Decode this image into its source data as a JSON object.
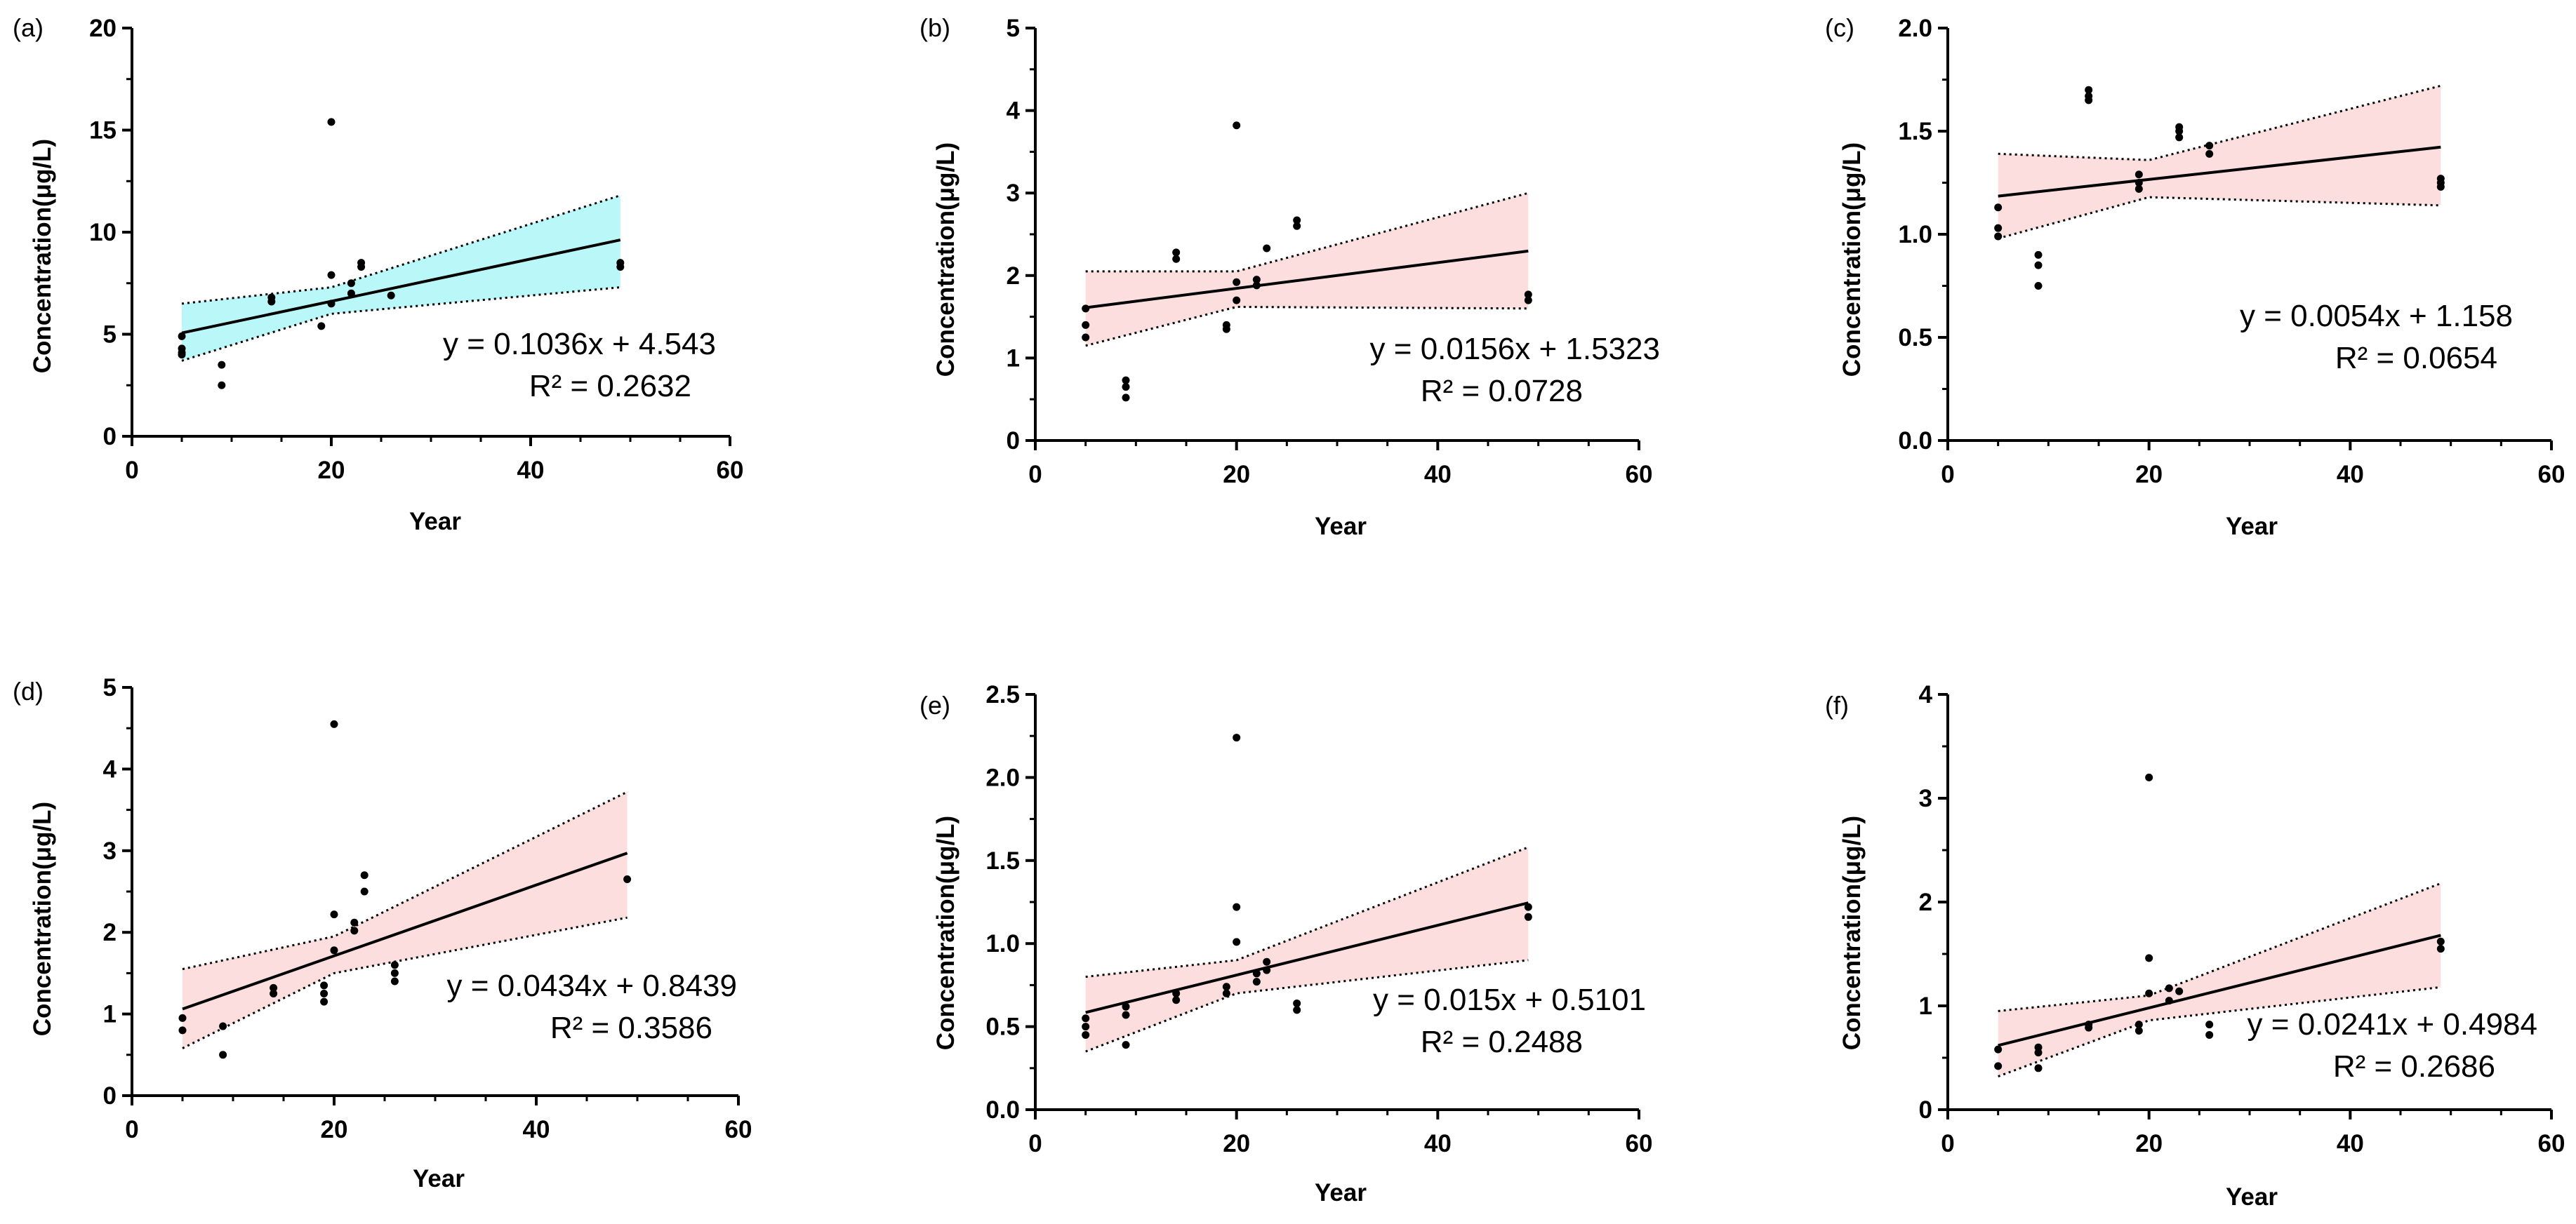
{
  "figure": {
    "colors": {
      "band_cyan": "#b9f7f9",
      "band_pink": "#fcdede",
      "ink": "#000000"
    }
  },
  "chart_data": [
    {
      "label": "(a)",
      "type": "scatter",
      "xlabel": "Year",
      "ylabel": "Concentration(μg/L)",
      "xlim": [
        0,
        60
      ],
      "ylim": [
        0,
        20
      ],
      "xticks": [
        "0",
        "20",
        "40",
        "60"
      ],
      "yticks": [
        "0",
        "5",
        "10",
        "15",
        "20"
      ],
      "equation": "y = 0.1036x + 4.543",
      "r2": "R² = 0.2632",
      "fit": {
        "slope": 0.1036,
        "intercept": 4.543,
        "x_range": [
          5,
          49
        ]
      },
      "band": {
        "color": "band_cyan",
        "x": [
          5,
          20,
          49
        ],
        "upper": [
          6.5,
          7.3,
          11.8
        ],
        "lower": [
          3.7,
          6.0,
          7.3
        ]
      },
      "points": [
        [
          5,
          4.9
        ],
        [
          5,
          4.3
        ],
        [
          5,
          4.1
        ],
        [
          5,
          4.0
        ],
        [
          9,
          3.5
        ],
        [
          9,
          2.5
        ],
        [
          14,
          6.8
        ],
        [
          14,
          6.6
        ],
        [
          19,
          5.4
        ],
        [
          20,
          15.4
        ],
        [
          20,
          7.9
        ],
        [
          20,
          6.5
        ],
        [
          22,
          7.5
        ],
        [
          22,
          7.0
        ],
        [
          23,
          8.5
        ],
        [
          23,
          8.3
        ],
        [
          26,
          6.9
        ],
        [
          49,
          8.5
        ],
        [
          49,
          8.3
        ]
      ]
    },
    {
      "label": "(b)",
      "type": "scatter",
      "xlabel": "Year",
      "ylabel": "Concentration(μg/L)",
      "xlim": [
        0,
        60
      ],
      "ylim": [
        0,
        5
      ],
      "xticks": [
        "0",
        "20",
        "40",
        "60"
      ],
      "yticks": [
        "0",
        "1",
        "2",
        "3",
        "4",
        "5"
      ],
      "equation": "y = 0.0156x + 1.5323",
      "r2": "R² = 0.0728",
      "fit": {
        "slope": 0.0156,
        "intercept": 1.5323,
        "x_range": [
          5,
          49
        ]
      },
      "band": {
        "color": "band_pink",
        "x": [
          5,
          20,
          49
        ],
        "upper": [
          2.05,
          2.05,
          3.0
        ],
        "lower": [
          1.15,
          1.62,
          1.6
        ]
      },
      "points": [
        [
          5,
          1.6
        ],
        [
          5,
          1.4
        ],
        [
          5,
          1.25
        ],
        [
          9,
          0.73
        ],
        [
          9,
          0.65
        ],
        [
          9,
          0.52
        ],
        [
          14,
          2.28
        ],
        [
          14,
          2.2
        ],
        [
          19,
          1.4
        ],
        [
          19,
          1.35
        ],
        [
          20,
          3.82
        ],
        [
          20,
          1.92
        ],
        [
          20,
          1.7
        ],
        [
          22,
          1.95
        ],
        [
          22,
          1.88
        ],
        [
          23,
          2.33
        ],
        [
          26,
          2.67
        ],
        [
          26,
          2.6
        ],
        [
          49,
          1.77
        ],
        [
          49,
          1.7
        ]
      ]
    },
    {
      "label": "(c)",
      "type": "scatter",
      "xlabel": "Year",
      "ylabel": "Concentration(μg/L)",
      "xlim": [
        0,
        60
      ],
      "ylim": [
        0,
        2.0
      ],
      "xticks": [
        "0",
        "20",
        "40",
        "60"
      ],
      "yticks": [
        "0.0",
        "0.5",
        "1.0",
        "1.5",
        "2.0"
      ],
      "equation": "y = 0.0054x + 1.158",
      "r2": "R² = 0.0654",
      "fit": {
        "slope": 0.0054,
        "intercept": 1.158,
        "x_range": [
          5,
          49
        ]
      },
      "band": {
        "color": "band_pink",
        "x": [
          5,
          20,
          49
        ],
        "upper": [
          1.39,
          1.36,
          1.72
        ],
        "lower": [
          0.98,
          1.18,
          1.14
        ]
      },
      "points": [
        [
          5,
          1.13
        ],
        [
          5,
          1.03
        ],
        [
          5,
          0.99
        ],
        [
          9,
          0.9
        ],
        [
          9,
          0.85
        ],
        [
          9,
          0.75
        ],
        [
          14,
          1.7
        ],
        [
          14,
          1.67
        ],
        [
          14,
          1.65
        ],
        [
          19,
          1.29
        ],
        [
          19,
          1.25
        ],
        [
          19,
          1.22
        ],
        [
          23,
          1.52
        ],
        [
          23,
          1.5
        ],
        [
          23,
          1.47
        ],
        [
          26,
          1.43
        ],
        [
          26,
          1.39
        ],
        [
          49,
          1.27
        ],
        [
          49,
          1.25
        ],
        [
          49,
          1.23
        ]
      ]
    },
    {
      "label": "(d)",
      "type": "scatter",
      "xlabel": "Year",
      "ylabel": "Concentration(μg/L)",
      "xlim": [
        0,
        60
      ],
      "ylim": [
        0,
        5
      ],
      "xticks": [
        "0",
        "20",
        "40",
        "60"
      ],
      "yticks": [
        "0",
        "1",
        "2",
        "3",
        "4",
        "5"
      ],
      "equation": "y = 0.0434x + 0.8439",
      "r2": "R² = 0.3586",
      "fit": {
        "slope": 0.0434,
        "intercept": 0.8439,
        "x_range": [
          5,
          49
        ]
      },
      "band": {
        "color": "band_pink",
        "x": [
          5,
          20,
          49
        ],
        "upper": [
          1.55,
          1.95,
          3.72
        ],
        "lower": [
          0.58,
          1.5,
          2.18
        ]
      },
      "points": [
        [
          5,
          0.95
        ],
        [
          5,
          0.8
        ],
        [
          9,
          0.85
        ],
        [
          9,
          0.5
        ],
        [
          14,
          1.32
        ],
        [
          14,
          1.25
        ],
        [
          19,
          1.35
        ],
        [
          19,
          1.25
        ],
        [
          19,
          1.15
        ],
        [
          20,
          4.55
        ],
        [
          20,
          2.22
        ],
        [
          20,
          1.78
        ],
        [
          22,
          2.12
        ],
        [
          22,
          2.02
        ],
        [
          23,
          2.7
        ],
        [
          23,
          2.5
        ],
        [
          26,
          1.6
        ],
        [
          26,
          1.5
        ],
        [
          26,
          1.4
        ],
        [
          49,
          2.65
        ]
      ]
    },
    {
      "label": "(e)",
      "type": "scatter",
      "xlabel": "Year",
      "ylabel": "Concentration(μg/L)",
      "xlim": [
        0,
        60
      ],
      "ylim": [
        0,
        2.5
      ],
      "xticks": [
        "0",
        "20",
        "40",
        "60"
      ],
      "yticks": [
        "0.0",
        "0.5",
        "1.0",
        "1.5",
        "2.0",
        "2.5"
      ],
      "equation": "y = 0.015x + 0.5101",
      "r2": "R² = 0.2488",
      "fit": {
        "slope": 0.015,
        "intercept": 0.5101,
        "x_range": [
          5,
          49
        ]
      },
      "band": {
        "color": "band_pink",
        "x": [
          5,
          20,
          49
        ],
        "upper": [
          0.8,
          0.9,
          1.58
        ],
        "lower": [
          0.35,
          0.7,
          0.9
        ]
      },
      "points": [
        [
          5,
          0.55
        ],
        [
          5,
          0.5
        ],
        [
          5,
          0.45
        ],
        [
          9,
          0.62
        ],
        [
          9,
          0.57
        ],
        [
          9,
          0.39
        ],
        [
          14,
          0.7
        ],
        [
          14,
          0.66
        ],
        [
          19,
          0.74
        ],
        [
          19,
          0.7
        ],
        [
          20,
          2.24
        ],
        [
          20,
          1.22
        ],
        [
          20,
          1.01
        ],
        [
          22,
          0.82
        ],
        [
          22,
          0.77
        ],
        [
          23,
          0.89
        ],
        [
          23,
          0.84
        ],
        [
          26,
          0.64
        ],
        [
          26,
          0.6
        ],
        [
          49,
          1.22
        ],
        [
          49,
          1.16
        ]
      ]
    },
    {
      "label": "(f)",
      "type": "scatter",
      "xlabel": "Year",
      "ylabel": "Concentration(μg/L)",
      "xlim": [
        0,
        60
      ],
      "ylim": [
        0,
        4
      ],
      "xticks": [
        "0",
        "20",
        "40",
        "60"
      ],
      "yticks": [
        "0",
        "1",
        "2",
        "3",
        "4"
      ],
      "equation": "y = 0.0241x + 0.4984",
      "r2": "R² = 0.2686",
      "fit": {
        "slope": 0.0241,
        "intercept": 0.4984,
        "x_range": [
          5,
          49
        ]
      },
      "band": {
        "color": "band_pink",
        "x": [
          5,
          20,
          49
        ],
        "upper": [
          0.95,
          1.1,
          2.18
        ],
        "lower": [
          0.32,
          0.86,
          1.18
        ]
      },
      "points": [
        [
          5,
          0.58
        ],
        [
          5,
          0.42
        ],
        [
          9,
          0.6
        ],
        [
          9,
          0.55
        ],
        [
          9,
          0.4
        ],
        [
          14,
          0.82
        ],
        [
          14,
          0.79
        ],
        [
          19,
          0.82
        ],
        [
          19,
          0.76
        ],
        [
          20,
          3.2
        ],
        [
          20,
          1.46
        ],
        [
          20,
          1.12
        ],
        [
          22,
          1.17
        ],
        [
          22,
          1.05
        ],
        [
          23,
          1.14
        ],
        [
          26,
          0.82
        ],
        [
          26,
          0.72
        ],
        [
          49,
          1.62
        ],
        [
          49,
          1.55
        ]
      ]
    }
  ]
}
